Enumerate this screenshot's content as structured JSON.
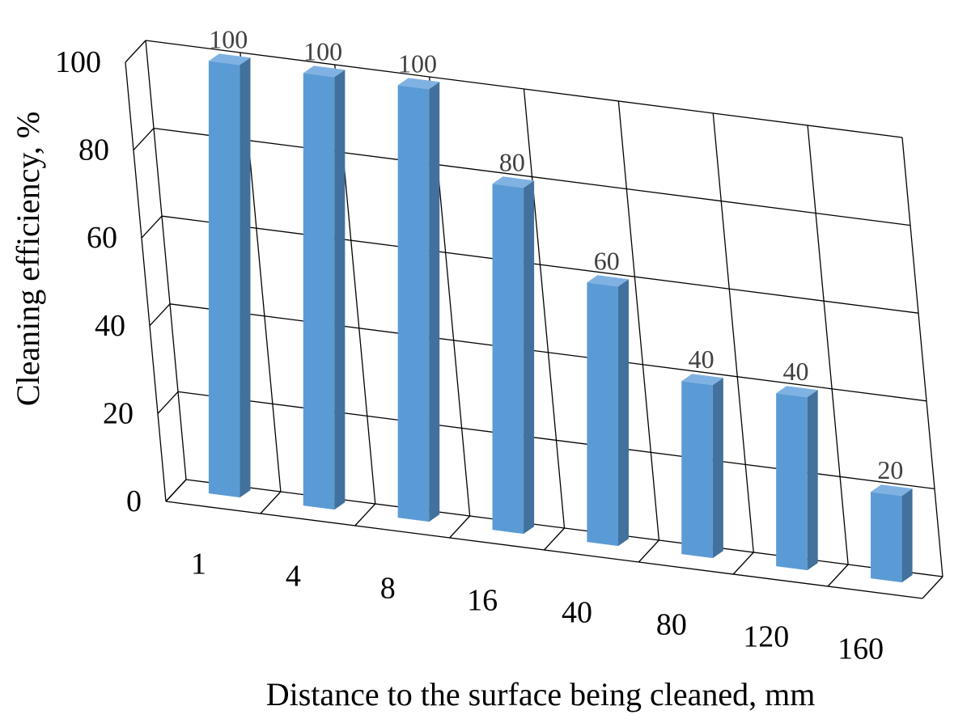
{
  "chart_data": {
    "type": "bar",
    "style": "3d-column",
    "categories": [
      "1",
      "4",
      "8",
      "16",
      "40",
      "80",
      "120",
      "160"
    ],
    "values": [
      100,
      100,
      100,
      80,
      60,
      40,
      40,
      20
    ],
    "data_labels": [
      "100",
      "100",
      "100",
      "80",
      "60",
      "40",
      "40",
      "20"
    ],
    "xlabel": "Distance to the surface being cleaned, mm",
    "ylabel": "Cleaning efficiency, %",
    "ylim": [
      0,
      100
    ],
    "y_ticks": [
      "0",
      "20",
      "40",
      "60",
      "80",
      "100"
    ],
    "grid": true,
    "legend": "none",
    "colors": {
      "bar_front": "#5b9bd5",
      "bar_side": "#41719c",
      "bar_top": "#7fb2e2",
      "grid": "#000000"
    }
  }
}
